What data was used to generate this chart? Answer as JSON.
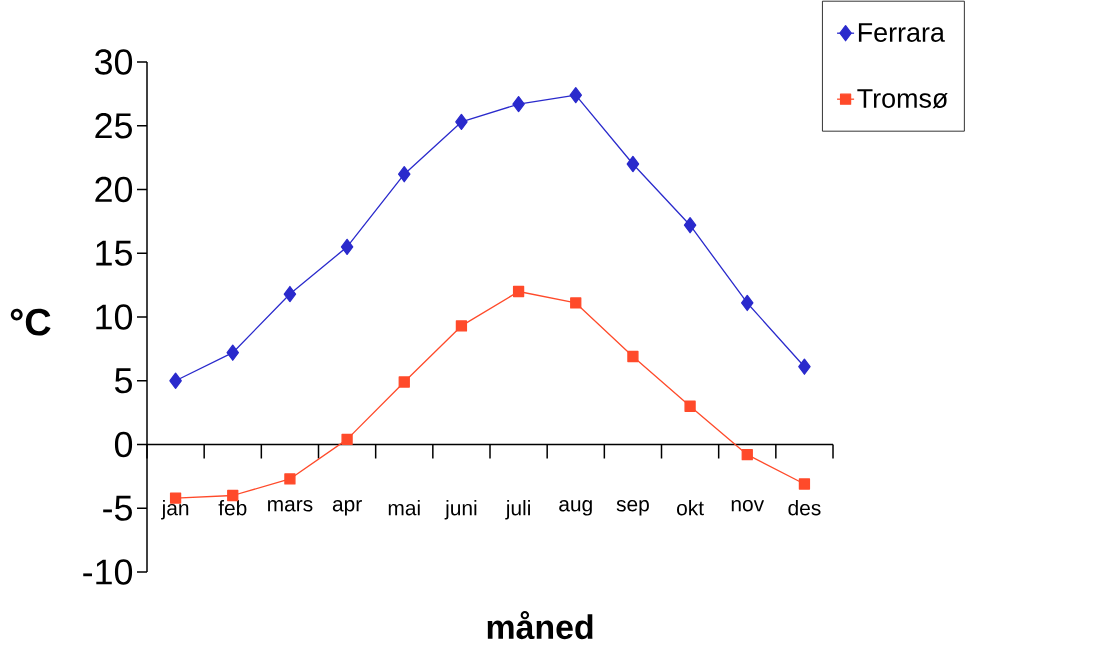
{
  "chart_data": {
    "type": "line",
    "xlabel": "måned",
    "ylabel": "°C",
    "categories": [
      "jan",
      "feb",
      "mars",
      "apr",
      "mai",
      "juni",
      "juli",
      "aug",
      "sep",
      "okt",
      "nov",
      "des"
    ],
    "series": [
      {
        "name": "Ferrara",
        "color": "#2a2acc",
        "marker": "diamond",
        "values": [
          5.0,
          7.2,
          11.8,
          15.5,
          21.2,
          25.3,
          26.7,
          27.4,
          22.0,
          17.2,
          11.1,
          6.1
        ]
      },
      {
        "name": "Tromsø",
        "color": "#ff4a2a",
        "marker": "square",
        "values": [
          -4.2,
          -4.0,
          -2.7,
          0.4,
          4.9,
          9.3,
          12.0,
          11.1,
          6.9,
          3.0,
          -0.8,
          -3.1
        ]
      }
    ],
    "ylim": [
      -10,
      30
    ],
    "yticks": [
      -10,
      -5,
      0,
      5,
      10,
      15,
      20,
      25,
      30
    ],
    "legend": "top right"
  }
}
